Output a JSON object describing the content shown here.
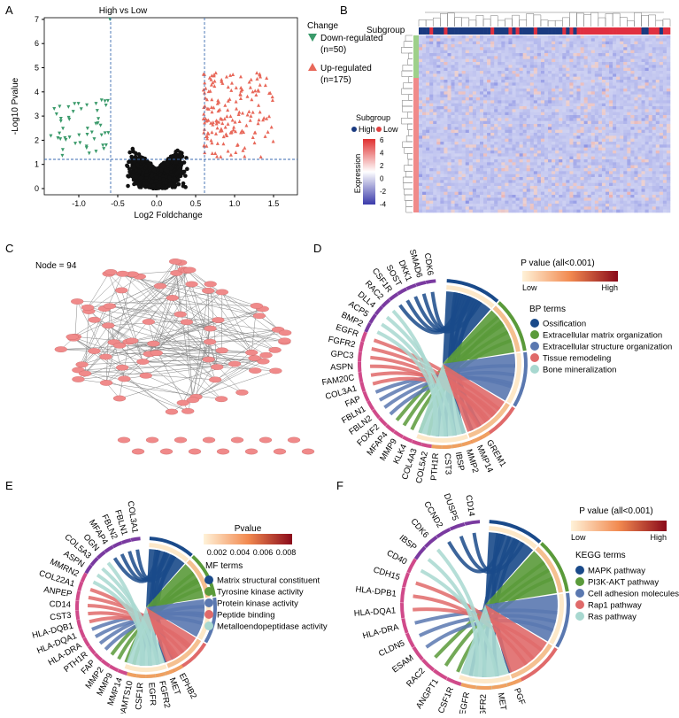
{
  "panels": {
    "A": {
      "letter": "A",
      "title": "High vs Low",
      "xlabel": "Log2 Foldchange",
      "ylabel": "-Log10 Pvalue",
      "legend_title": "Change",
      "legend_down": "Down-regulated",
      "legend_down_n": "(n=50)",
      "legend_up": "Up-regulated",
      "legend_up_n": "(n=175)",
      "colors": {
        "down": "#3a9a6a",
        "up": "#e8685a",
        "ns": "#111111"
      }
    },
    "B": {
      "letter": "B",
      "subgroup_label": "Subgroup",
      "legend_title": "Subgroup",
      "legend_high": "High",
      "legend_low": "Low",
      "expr_label": "Expression",
      "expr_ticks": [
        "6",
        "4",
        "2",
        "0",
        "-2",
        "-4"
      ]
    },
    "C": {
      "letter": "C",
      "node_label": "Node = 94"
    },
    "D": {
      "letter": "D",
      "pvalue_title": "P value (all<0.001)",
      "low": "Low",
      "high": "High",
      "terms_title": "BP terms",
      "terms": [
        "Ossification",
        "Extracellular matrix organization",
        "Extracellular structure organization",
        "Tissue remodeling",
        "Bone mineralization"
      ],
      "genes": [
        "GREM1",
        "MMP14",
        "MMP2",
        "IBSP",
        "CST3",
        "PTH1R",
        "COL5A2",
        "COL4A3",
        "KLK4",
        "MMP9",
        "MFAP4",
        "FOXF2",
        "FBLN2",
        "FBLN1",
        "FAP",
        "COL3A1",
        "FAM20C",
        "ASPN",
        "GPC3",
        "FGFR2",
        "EGFR",
        "BMP2",
        "ACP5",
        "DLL4",
        "RAC2",
        "CSF1R",
        "SOST",
        "DKK1",
        "SMAD6",
        "CDK6"
      ]
    },
    "E": {
      "letter": "E",
      "pvalue_title": "Pvalue",
      "ticks": [
        "0.002",
        "0.004",
        "0.006",
        "0.008"
      ],
      "terms_title": "MF terms",
      "terms": [
        "Matrix structural constituent",
        "Tyrosine kinase activity",
        "Protein kinase activity",
        "Peptide binding",
        "Metalloendopeptidase activity"
      ],
      "genes": [
        "EPHB2",
        "MET",
        "FGFR2",
        "EGFR",
        "CSF1R",
        "ADAMTS10",
        "MMP14",
        "MMP9",
        "MMP2",
        "FAP",
        "PTH1R",
        "HLA-DRA",
        "HLA-DQA1",
        "HLA-DQB1",
        "CST3",
        "CD14",
        "ANPEP",
        "COL22A1",
        "MMRN2",
        "ASPN",
        "COL5A3",
        "OGN",
        "MFAP4",
        "FBLN2",
        "FBLN1",
        "COL3A1"
      ]
    },
    "F": {
      "letter": "F",
      "pvalue_title": "P value (all<0.001)",
      "low": "Low",
      "high": "High",
      "terms_title": "KEGG terms",
      "terms": [
        "MAPK pathway",
        "PI3K-AKT pathway",
        "Cell adhesion molecules",
        "Rap1 pathway",
        "Ras pathway"
      ],
      "genes": [
        "PGF",
        "MET",
        "FGFR2",
        "EGFR",
        "CSF1R",
        "ANGPT1",
        "RAC2",
        "ESAM",
        "CLDN5",
        "HLA-DRA",
        "HLA-DQA1",
        "HLA-DPB1",
        "CDH15",
        "CD40",
        "IBSP",
        "CDK6",
        "CCND2",
        "DUSP5",
        "CD14"
      ]
    }
  },
  "term_colors": [
    "#1a4a8a",
    "#5a9a3a",
    "#5a78b0",
    "#e06a6a",
    "#a8d8d0"
  ]
}
